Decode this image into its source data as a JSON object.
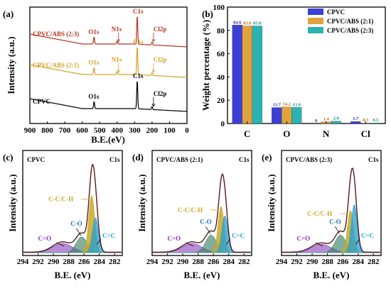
{
  "chart_data": [
    {
      "panel": "(a)",
      "type": "line",
      "xlabel": "B.E.(eV)",
      "ylabel": "Intensity (a.u.)",
      "x_ticks": [
        "900",
        "800",
        "700",
        "600",
        "500",
        "400",
        "300",
        "200",
        "100",
        "0"
      ],
      "xlim": [
        900,
        0
      ],
      "series": [
        {
          "name": "CPVC/ABS (2:3)",
          "color": "#b5341f",
          "peaks": [
            {
              "label": "O1s",
              "x": 532
            },
            {
              "label": "N1s",
              "x": 400
            },
            {
              "label": "C1s",
              "x": 285
            },
            {
              "label": "Cl2p",
              "x": 200
            }
          ]
        },
        {
          "name": "CPVC/ABS (2:1)",
          "color": "#d9a025",
          "peaks": [
            {
              "label": "O1s",
              "x": 532
            },
            {
              "label": "N1s",
              "x": 400
            },
            {
              "label": "C1s",
              "x": 285
            },
            {
              "label": "Cl2p",
              "x": 200
            }
          ]
        },
        {
          "name": "CPVC",
          "color": "#000000",
          "peaks": [
            {
              "label": "O1s",
              "x": 532
            },
            {
              "label": "C1s",
              "x": 285
            },
            {
              "label": "Cl2p",
              "x": 200
            }
          ]
        }
      ]
    },
    {
      "panel": "(b)",
      "type": "bar",
      "ylabel": "Weight percentage (%)",
      "ylim": [
        0,
        100
      ],
      "y_ticks": [
        "0",
        "20",
        "40",
        "60",
        "80",
        "100"
      ],
      "categories": [
        "C",
        "O",
        "N",
        "Cl"
      ],
      "legend_position": "top-right",
      "series": [
        {
          "name": "CPVC",
          "color": "#3b3fd6",
          "values": [
            84.6,
            13.7,
            0,
            1.7
          ],
          "labels": [
            "84.6",
            "13.7",
            "0",
            "1.7"
          ]
        },
        {
          "name": "CPVC/ABS (2:1)",
          "color": "#e0a33b",
          "values": [
            83.8,
            14.2,
            1.4,
            0.5
          ],
          "labels": [
            "83.8",
            "14.2",
            "1.4",
            "0.5"
          ]
        },
        {
          "name": "CPVC/ABS (2:3)",
          "color": "#2bb3b3",
          "values": [
            83.8,
            13.8,
            2.0,
            0.5
          ],
          "labels": [
            "83.8",
            "13.8",
            "2.0",
            "0.5"
          ]
        }
      ]
    },
    {
      "panel": "(c)",
      "type": "line",
      "sample": "CPVC",
      "region": "C1s",
      "xlabel": "B.E. (eV)",
      "ylabel": "Intensity (a.u.)",
      "x_ticks": [
        "294",
        "292",
        "290",
        "288",
        "286",
        "284",
        "282"
      ],
      "xlim": [
        294,
        281
      ],
      "components": [
        {
          "name": "C=O",
          "center": 288.8,
          "height": 0.1,
          "width": 1.8,
          "color": "#7d2fb8"
        },
        {
          "name": "C-O",
          "center": 286.3,
          "height": 0.17,
          "width": 1.0,
          "color": "#2f7a5a"
        },
        {
          "name": "C-C/C-H",
          "center": 285.0,
          "height": 0.62,
          "width": 0.55,
          "color": "#c9a827"
        },
        {
          "name": "C=C",
          "center": 284.5,
          "height": 0.38,
          "width": 0.55,
          "color": "#1f9fd4"
        }
      ]
    },
    {
      "panel": "(d)",
      "type": "line",
      "sample": "CPVC/ABS (2:1)",
      "region": "C1s",
      "xlabel": "B.E. (eV)",
      "ylabel": "Intensity (a.u.)",
      "x_ticks": [
        "294",
        "292",
        "290",
        "288",
        "286",
        "284",
        "282"
      ],
      "xlim": [
        294,
        281
      ],
      "components": [
        {
          "name": "C=O",
          "center": 288.8,
          "height": 0.1,
          "width": 1.8,
          "color": "#7d2fb8"
        },
        {
          "name": "C-O",
          "center": 286.3,
          "height": 0.19,
          "width": 1.0,
          "color": "#2f7a5a"
        },
        {
          "name": "C-C/C-H",
          "center": 285.0,
          "height": 0.5,
          "width": 0.55,
          "color": "#c9a827"
        },
        {
          "name": "C=C",
          "center": 284.5,
          "height": 0.4,
          "width": 0.55,
          "color": "#1f9fd4"
        }
      ]
    },
    {
      "panel": "(e)",
      "type": "line",
      "sample": "CPVC/ABS (2:3)",
      "region": "C1s",
      "xlabel": "B.E. (eV)",
      "ylabel": "Intensity (a.u.)",
      "x_ticks": [
        "294",
        "292",
        "290",
        "288",
        "286",
        "284",
        "282"
      ],
      "xlim": [
        294,
        281
      ],
      "components": [
        {
          "name": "C=O",
          "center": 288.8,
          "height": 0.09,
          "width": 1.8,
          "color": "#7d2fb8"
        },
        {
          "name": "C-O",
          "center": 286.3,
          "height": 0.19,
          "width": 1.0,
          "color": "#2f7a5a"
        },
        {
          "name": "C-C/C-H",
          "center": 285.0,
          "height": 0.46,
          "width": 0.55,
          "color": "#c9a827"
        },
        {
          "name": "C=C",
          "center": 284.5,
          "height": 0.52,
          "width": 0.55,
          "color": "#1f9fd4"
        }
      ]
    }
  ]
}
